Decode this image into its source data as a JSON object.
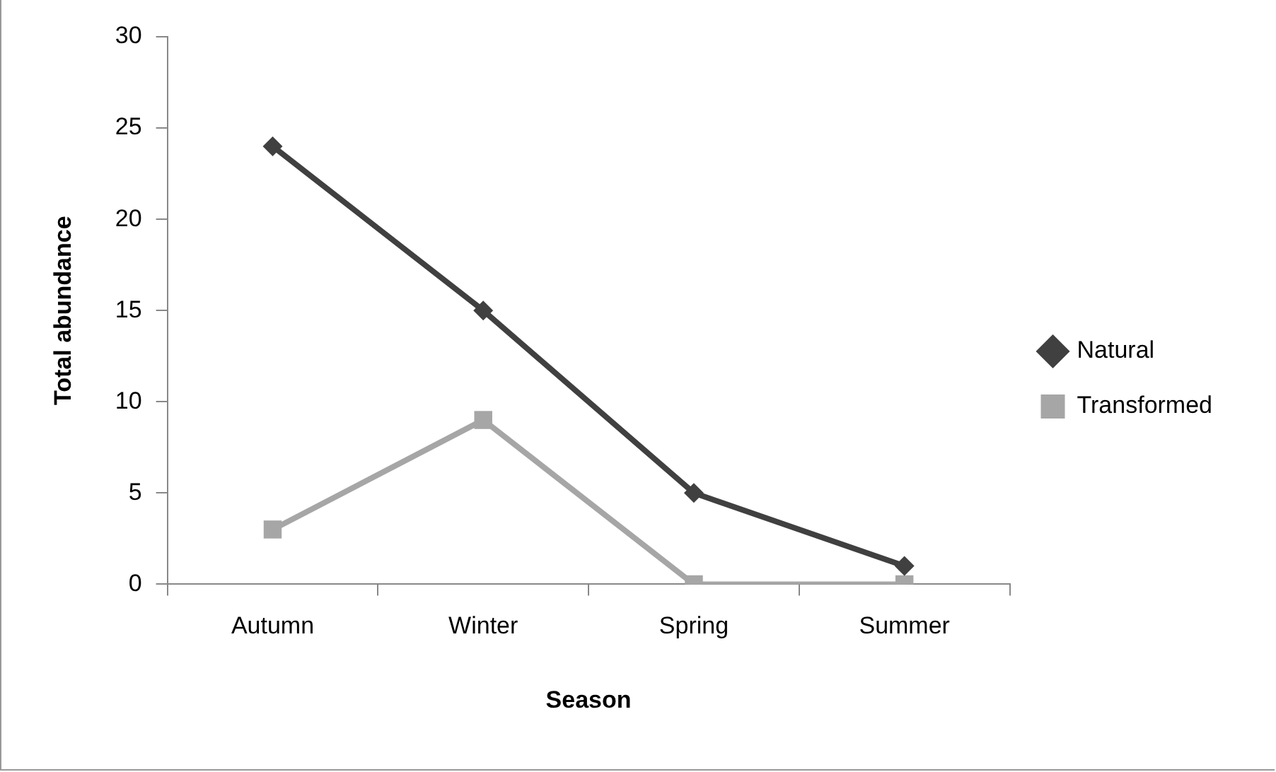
{
  "chart_data": {
    "type": "line",
    "xlabel": "Season",
    "ylabel": "Total abundance",
    "categories": [
      "Autumn",
      "Winter",
      "Spring",
      "Summer"
    ],
    "series": [
      {
        "name": "Natural",
        "color": "#404040",
        "marker": "diamond",
        "values": [
          24,
          15,
          5,
          1
        ]
      },
      {
        "name": "Transformed",
        "color": "#a6a6a6",
        "marker": "square",
        "values": [
          3,
          9,
          0,
          0
        ]
      }
    ],
    "ylim": [
      0,
      30
    ],
    "yticks": [
      0,
      5,
      10,
      15,
      20,
      25,
      30
    ],
    "grid": false,
    "legend": "right",
    "line_style": "solid"
  }
}
